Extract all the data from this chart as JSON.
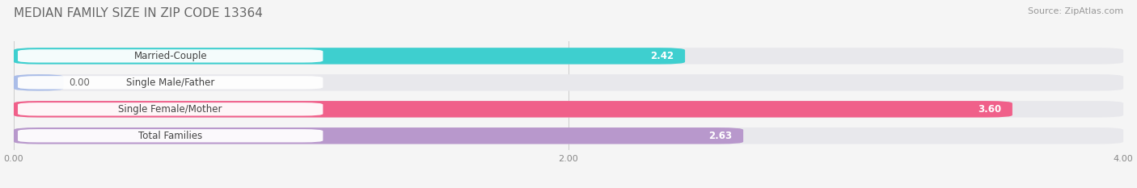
{
  "title": "MEDIAN FAMILY SIZE IN ZIP CODE 13364",
  "source": "Source: ZipAtlas.com",
  "categories": [
    "Married-Couple",
    "Single Male/Father",
    "Single Female/Mother",
    "Total Families"
  ],
  "values": [
    2.42,
    0.0,
    3.6,
    2.63
  ],
  "bar_colors": [
    "#3ECFCF",
    "#AABDE8",
    "#F0608A",
    "#B898CC"
  ],
  "track_color": "#E8E8EC",
  "label_bg_color": "#FFFFFF",
  "xlim": [
    0.0,
    4.0
  ],
  "xticks": [
    0.0,
    2.0,
    4.0
  ],
  "xtick_labels": [
    "0.00",
    "2.00",
    "4.00"
  ],
  "bg_color": "#F5F5F5",
  "bar_height": 0.62,
  "value_fontsize": 8.5,
  "label_fontsize": 8.5,
  "title_fontsize": 11,
  "source_fontsize": 8
}
